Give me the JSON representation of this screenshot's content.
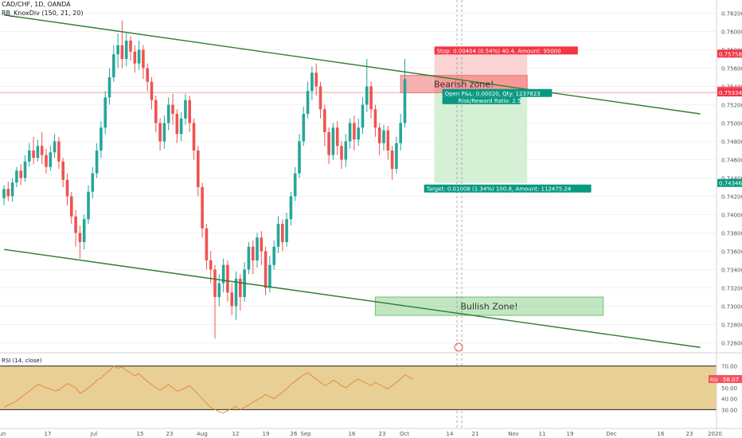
{
  "header": {
    "symbol": "CAD/CHF, 1D, OANDA",
    "indicator": "RB_KnoxDiv (150, 21, 20)",
    "rsi_label": "RSI (14, close)"
  },
  "colors": {
    "up": "#26a69a",
    "down": "#ef5350",
    "channel": "#2e7d32",
    "bearish_zone": "#f5b7b7",
    "bullish_zone": "#bde3bd",
    "stop_area": "#fbd3d3",
    "target_area": "#d5f0d5",
    "rsi_band": "#e8cf96",
    "rsi_line": "#e58b3c"
  },
  "chart_data": {
    "type": "candlestick",
    "y_axis": {
      "min": 0.725,
      "max": 0.763,
      "ticks": [
        "0.76200",
        "0.76000",
        "0.75800",
        "0.75600",
        "0.75400",
        "0.75200",
        "0.75000",
        "0.74800",
        "0.74600",
        "0.74400",
        "0.74200",
        "0.74000",
        "0.73800",
        "0.73600",
        "0.73400",
        "0.73200",
        "0.73000",
        "0.72800",
        "0.72600"
      ]
    },
    "x_axis_labels": [
      "Jun",
      "17",
      "Jul",
      "15",
      "23",
      "Aug",
      "12",
      "19",
      "26",
      "Sep",
      "16",
      "23",
      "Oct",
      "14",
      "21",
      "Nov",
      "11",
      "19",
      "Dec",
      "16",
      "23",
      "2020"
    ],
    "price_tags": [
      {
        "text": "0.75758",
        "value": 0.75758,
        "color": "#f23645"
      },
      {
        "text": "0.75354",
        "value": 0.75354,
        "color": "#f7525f"
      },
      {
        "text": "0.75334",
        "value": 0.75334,
        "color": "#f23645"
      },
      {
        "text": "0.74346",
        "value": 0.74346,
        "color": "#089981"
      }
    ],
    "candles_start": 0.7418,
    "candles": [
      [
        0.7418,
        0.7428,
        0.741,
        0.7432
      ],
      [
        0.7428,
        0.742,
        0.7415,
        0.7436
      ],
      [
        0.742,
        0.7435,
        0.7414,
        0.744
      ],
      [
        0.7435,
        0.7448,
        0.743,
        0.7452
      ],
      [
        0.7448,
        0.744,
        0.7432,
        0.7455
      ],
      [
        0.744,
        0.7458,
        0.7436,
        0.7465
      ],
      [
        0.7458,
        0.747,
        0.7452,
        0.7478
      ],
      [
        0.747,
        0.7462,
        0.7455,
        0.7485
      ],
      [
        0.7462,
        0.7475,
        0.7458,
        0.7482
      ],
      [
        0.7475,
        0.7465,
        0.7455,
        0.749
      ],
      [
        0.7465,
        0.7452,
        0.7445,
        0.7472
      ],
      [
        0.7452,
        0.7468,
        0.7448,
        0.7475
      ],
      [
        0.7468,
        0.748,
        0.7462,
        0.7488
      ],
      [
        0.748,
        0.7458,
        0.745,
        0.7485
      ],
      [
        0.7458,
        0.7438,
        0.743,
        0.7462
      ],
      [
        0.7438,
        0.742,
        0.741,
        0.7445
      ],
      [
        0.742,
        0.7398,
        0.739,
        0.7425
      ],
      [
        0.7398,
        0.738,
        0.7365,
        0.7405
      ],
      [
        0.738,
        0.737,
        0.7352,
        0.7388
      ],
      [
        0.737,
        0.7395,
        0.7362,
        0.74
      ],
      [
        0.7395,
        0.7425,
        0.739,
        0.7432
      ],
      [
        0.7425,
        0.7445,
        0.7418,
        0.7452
      ],
      [
        0.7445,
        0.747,
        0.744,
        0.7478
      ],
      [
        0.747,
        0.7495,
        0.7462,
        0.7502
      ],
      [
        0.7495,
        0.7528,
        0.7488,
        0.7535
      ],
      [
        0.7528,
        0.755,
        0.752,
        0.756
      ],
      [
        0.755,
        0.7575,
        0.7545,
        0.7585
      ],
      [
        0.7575,
        0.7585,
        0.756,
        0.7598
      ],
      [
        0.7585,
        0.757,
        0.756,
        0.7612
      ],
      [
        0.757,
        0.759,
        0.7562,
        0.7598
      ],
      [
        0.759,
        0.7578,
        0.7568,
        0.7595
      ],
      [
        0.7578,
        0.7565,
        0.7555,
        0.7585
      ],
      [
        0.7565,
        0.758,
        0.7558,
        0.759
      ],
      [
        0.758,
        0.756,
        0.7548,
        0.7585
      ],
      [
        0.756,
        0.7545,
        0.7535,
        0.7565
      ],
      [
        0.7545,
        0.7525,
        0.7515,
        0.755
      ],
      [
        0.7525,
        0.75,
        0.749,
        0.753
      ],
      [
        0.75,
        0.748,
        0.747,
        0.7505
      ],
      [
        0.748,
        0.75,
        0.7472,
        0.7508
      ],
      [
        0.75,
        0.752,
        0.7492,
        0.7528
      ],
      [
        0.752,
        0.751,
        0.7498,
        0.7532
      ],
      [
        0.751,
        0.7488,
        0.7478,
        0.7515
      ],
      [
        0.7488,
        0.7505,
        0.748,
        0.7512
      ],
      [
        0.7505,
        0.7525,
        0.7498,
        0.7532
      ],
      [
        0.7525,
        0.75,
        0.749,
        0.753
      ],
      [
        0.75,
        0.747,
        0.746,
        0.7505
      ],
      [
        0.747,
        0.743,
        0.742,
        0.7475
      ],
      [
        0.743,
        0.7385,
        0.7375,
        0.7435
      ],
      [
        0.7385,
        0.735,
        0.734,
        0.739
      ],
      [
        0.735,
        0.734,
        0.7325,
        0.736
      ],
      [
        0.734,
        0.731,
        0.7265,
        0.7345
      ],
      [
        0.731,
        0.7325,
        0.73,
        0.7335
      ],
      [
        0.7325,
        0.7345,
        0.7315,
        0.7352
      ],
      [
        0.7345,
        0.7315,
        0.7305,
        0.735
      ],
      [
        0.7315,
        0.73,
        0.729,
        0.7325
      ],
      [
        0.73,
        0.733,
        0.7285,
        0.7338
      ],
      [
        0.733,
        0.731,
        0.7295,
        0.7335
      ],
      [
        0.731,
        0.734,
        0.7305,
        0.7348
      ],
      [
        0.734,
        0.7365,
        0.7335,
        0.737
      ],
      [
        0.7365,
        0.735,
        0.7335,
        0.7372
      ],
      [
        0.735,
        0.7375,
        0.7342,
        0.738
      ],
      [
        0.7375,
        0.736,
        0.7345,
        0.7382
      ],
      [
        0.736,
        0.732,
        0.7312,
        0.7365
      ],
      [
        0.732,
        0.7345,
        0.7315,
        0.7355
      ],
      [
        0.7345,
        0.7365,
        0.734,
        0.7372
      ],
      [
        0.7365,
        0.739,
        0.7358,
        0.7398
      ],
      [
        0.739,
        0.737,
        0.736,
        0.7395
      ],
      [
        0.737,
        0.7395,
        0.7365,
        0.7402
      ],
      [
        0.7395,
        0.742,
        0.7388,
        0.7425
      ],
      [
        0.742,
        0.7445,
        0.7415,
        0.7452
      ],
      [
        0.7445,
        0.748,
        0.744,
        0.7488
      ],
      [
        0.748,
        0.751,
        0.7475,
        0.7518
      ],
      [
        0.751,
        0.7535,
        0.7505,
        0.7545
      ],
      [
        0.7535,
        0.7555,
        0.7525,
        0.7562
      ],
      [
        0.7555,
        0.754,
        0.753,
        0.7565
      ],
      [
        0.754,
        0.7515,
        0.7505,
        0.7545
      ],
      [
        0.7515,
        0.749,
        0.7475,
        0.752
      ],
      [
        0.749,
        0.7465,
        0.7455,
        0.7495
      ],
      [
        0.7465,
        0.7495,
        0.746,
        0.75
      ],
      [
        0.7495,
        0.7475,
        0.7465,
        0.7502
      ],
      [
        0.7475,
        0.746,
        0.745,
        0.748
      ],
      [
        0.746,
        0.748,
        0.7452,
        0.7488
      ],
      [
        0.748,
        0.75,
        0.7472,
        0.7505
      ],
      [
        0.75,
        0.7482,
        0.747,
        0.7508
      ],
      [
        0.7482,
        0.7495,
        0.7475,
        0.7505
      ],
      [
        0.7495,
        0.752,
        0.7488,
        0.7528
      ],
      [
        0.752,
        0.754,
        0.7512,
        0.757
      ],
      [
        0.754,
        0.7515,
        0.7505,
        0.7545
      ],
      [
        0.7515,
        0.7495,
        0.7485,
        0.752
      ],
      [
        0.7495,
        0.7478,
        0.7465,
        0.75
      ],
      [
        0.7478,
        0.7492,
        0.747,
        0.7498
      ],
      [
        0.7492,
        0.747,
        0.746,
        0.7497
      ],
      [
        0.747,
        0.745,
        0.7438,
        0.7475
      ],
      [
        0.745,
        0.7478,
        0.7445,
        0.7485
      ],
      [
        0.7478,
        0.75,
        0.747,
        0.751
      ],
      [
        0.75,
        0.7548,
        0.7495,
        0.757
      ]
    ],
    "rsi": {
      "axis_ticks": [
        "70.00",
        "50.00",
        "40.00",
        "30.00"
      ],
      "last_value": "58.07",
      "overbought": 70,
      "oversold": 30,
      "values": [
        32,
        34,
        36,
        38,
        41,
        44,
        47,
        50,
        53,
        52,
        50,
        49,
        47,
        48,
        51,
        54,
        52,
        50,
        45,
        47,
        50,
        53,
        57,
        59,
        63,
        66,
        70,
        68,
        69,
        66,
        64,
        61,
        63,
        59,
        56,
        53,
        50,
        48,
        50,
        53,
        50,
        47,
        48,
        50,
        52,
        48,
        44,
        40,
        36,
        32,
        30,
        28,
        27,
        29,
        31,
        33,
        30,
        32,
        34,
        37,
        39,
        41,
        44,
        42,
        40,
        43,
        46,
        49,
        53,
        56,
        59,
        62,
        64,
        61,
        58,
        55,
        52,
        54,
        57,
        55,
        52,
        50,
        53,
        56,
        58,
        56,
        54,
        52,
        55,
        53,
        51,
        49,
        52,
        55,
        58,
        62,
        60,
        58
      ]
    },
    "annotations": {
      "bearish_zone": {
        "text": "Bearish zone!",
        "top": 0.7552,
        "bottom": 0.7533,
        "from_candle": 94,
        "to_candle": 124
      },
      "bullish_zone": {
        "text": "Bullish Zone!",
        "top": 0.731,
        "bottom": 0.729,
        "from_candle": 88,
        "to_candle": 142
      },
      "trade": {
        "entry": 0.75354,
        "stop": 0.75758,
        "target": 0.74346,
        "from_candle": 102,
        "to_candle": 124,
        "stop_text": "Stop: 0.00404 (0.54%) 40.4, Amount: 95000",
        "pnl_text": "Open P&L: 0.00020, Qty: 1237623",
        "rr_text": "Risk/Reward Ratio: 2.5",
        "target_text": "Target: 0.01008 (1.34%) 100.8, Amount: 112475.24"
      },
      "upper_channel": [
        [
          0,
          0.7618
        ],
        [
          165,
          0.751
        ]
      ],
      "lower_channel": [
        [
          0,
          0.7362
        ],
        [
          165,
          0.7255
        ]
      ],
      "entry_line": 0.75334
    }
  }
}
